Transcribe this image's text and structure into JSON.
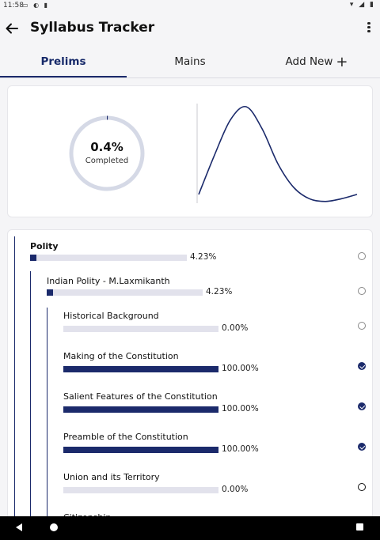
{
  "status_bar": {
    "time": "11:58",
    "left_icons": "▭ ◐ ▮",
    "right_icons": "▾ ◢ ▮"
  },
  "app_bar": {
    "title": "Syllabus Tracker",
    "back_icon": "back-arrow-icon",
    "more_icon": "more-vert-icon"
  },
  "tabs": [
    {
      "label": "Prelims",
      "active": true
    },
    {
      "label": "Mains",
      "active": false
    },
    {
      "label": "Add New",
      "icon": "+",
      "active": false
    }
  ],
  "progress": {
    "percent_label": "0.4%",
    "completed_label": "Completed",
    "fraction": 0.004
  },
  "chart_data": {
    "type": "line",
    "title": "",
    "xlabel": "",
    "ylabel": "",
    "x": [
      0,
      1,
      2,
      3,
      4,
      5,
      6,
      7,
      8,
      9,
      10
    ],
    "values": [
      0,
      0.45,
      0.85,
      1.0,
      0.75,
      0.35,
      0.08,
      -0.05,
      -0.08,
      -0.05,
      0.0
    ],
    "grid": false,
    "color": "#1b2a6b"
  },
  "syllabus": [
    {
      "name": "Polity",
      "level": 0,
      "percent": "4.23%",
      "fraction": 0.0423,
      "status": "empty"
    },
    {
      "name": "Indian Polity - M.Laxmikanth",
      "level": 1,
      "percent": "4.23%",
      "fraction": 0.0423,
      "status": "empty"
    },
    {
      "name": "Historical Background",
      "level": 2,
      "percent": "0.00%",
      "fraction": 0.0,
      "status": "empty"
    },
    {
      "name": "Making of the Constitution",
      "level": 2,
      "percent": "100.00%",
      "fraction": 1.0,
      "status": "done"
    },
    {
      "name": "Salient Features of the Constitution",
      "level": 2,
      "percent": "100.00%",
      "fraction": 1.0,
      "status": "done"
    },
    {
      "name": "Preamble of the Constitution",
      "level": 2,
      "percent": "100.00%",
      "fraction": 1.0,
      "status": "done"
    },
    {
      "name": "Union and its Territory",
      "level": 2,
      "percent": "0.00%",
      "fraction": 0.0,
      "status": "dark"
    },
    {
      "name": "Citizenship",
      "level": 2,
      "percent": "",
      "fraction": 0.0,
      "status": "empty"
    }
  ],
  "colors": {
    "accent": "#1b2a6b",
    "track": "#e2e2ec",
    "ring_track": "#d5d9e6"
  }
}
